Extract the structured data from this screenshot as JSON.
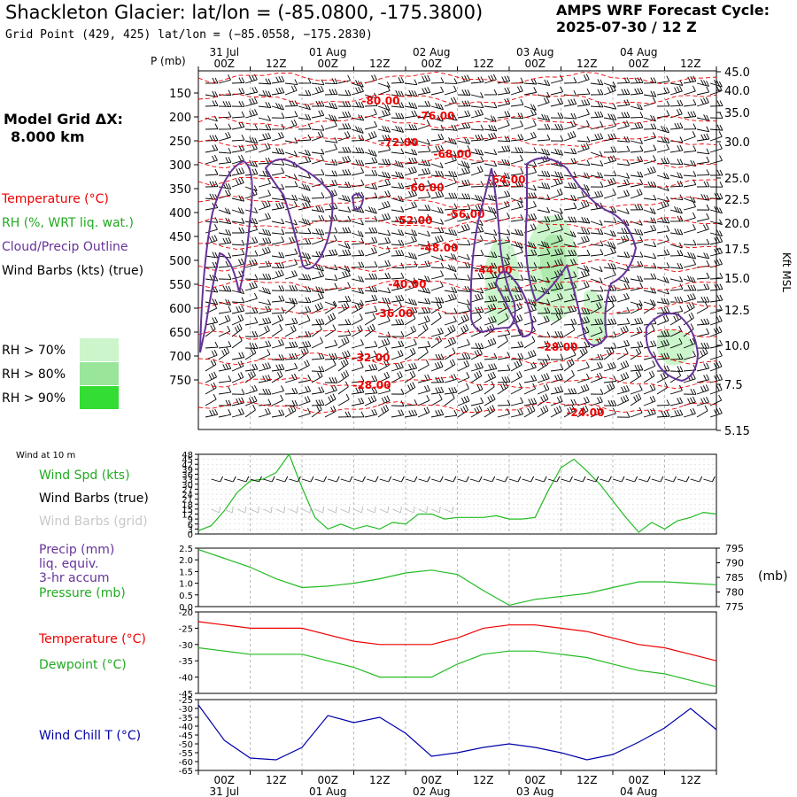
{
  "header": {
    "title": "Shackleton Glacier:  lat/lon = (-85.0800, -175.3800)",
    "subtitle": "Grid Point (429, 425) lat/lon = (−85.0558, −175.2830)",
    "cycle_line1": "AMPS WRF Forecast Cycle:",
    "cycle_line2": "2025-07-30 / 12  Z"
  },
  "left_panel": {
    "model_grid_line1": "Model Grid ΔX:",
    "model_grid_line2": "8.000 km",
    "legend": {
      "temperature": "Temperature (°C)",
      "rh": "RH (%, WRT liq. wat.)",
      "cloud": "Cloud/Precip Outline",
      "wind": "Wind Barbs (kts) (true)"
    },
    "rh_levels": [
      {
        "label": "RH > 70%",
        "color": "#ccf5cc"
      },
      {
        "label": "RH > 80%",
        "color": "#99e599"
      },
      {
        "label": "RH > 90%",
        "color": "#33dd33"
      }
    ]
  },
  "time_axis": {
    "ticks": [
      "00Z",
      "12Z",
      "00Z",
      "12Z",
      "00Z",
      "12Z",
      "00Z",
      "12Z",
      "00Z",
      "12Z"
    ],
    "dates": [
      "31 Jul",
      "01 Aug",
      "02 Aug",
      "03 Aug",
      "04 Aug"
    ]
  },
  "colors": {
    "temperature": "#ee0000",
    "rh_text": "#22aa22",
    "cloud": "#663399",
    "pressure_line": "#22bb22",
    "wind_chill": "#0000aa",
    "dewpoint": "#22bb22",
    "grid": "#aaaaaa"
  },
  "chart_data": [
    {
      "type": "cross-section",
      "title": "",
      "ylabel_left": "P (mb)",
      "ylabel_right": "Kft MSL",
      "pressure_ticks": [
        "150",
        "200",
        "250",
        "300",
        "350",
        "400",
        "450",
        "500",
        "550",
        "600",
        "650",
        "700",
        "750"
      ],
      "height_ticks": [
        "45.0",
        "40.0",
        "35.0",
        "30.0",
        "25.0",
        "22.5",
        "20.0",
        "17.5",
        "15.0",
        "12.5",
        "10.0",
        "7.5",
        "5.15"
      ],
      "temperature_contours": [
        {
          "label": "-80.00",
          "value": -80
        },
        {
          "label": "-76.00",
          "value": -76
        },
        {
          "label": "-72.00",
          "value": -72
        },
        {
          "label": "-68.00",
          "value": -68
        },
        {
          "label": "-64.00",
          "value": -64
        },
        {
          "label": "-60.00",
          "value": -60
        },
        {
          "label": "-56.00",
          "value": -56
        },
        {
          "label": "-52.00",
          "value": -52
        },
        {
          "label": "-48.00",
          "value": -48
        },
        {
          "label": "-44.00",
          "value": -44
        },
        {
          "label": "-40.00",
          "value": -40
        },
        {
          "label": "-36.00",
          "value": -36
        },
        {
          "label": "-32.00",
          "value": -32
        },
        {
          "label": "-28.00",
          "value": -28
        },
        {
          "label": "-28.00",
          "value": -28
        },
        {
          "label": "-24.00",
          "value": -24
        }
      ]
    },
    {
      "type": "line",
      "panel_label": "Wind at 10 m",
      "legend": [
        "Wind Spd (kts)",
        "Wind Barbs (true)",
        "Wind Barbs (grid)"
      ],
      "y_ticks": [
        "48",
        "45",
        "42",
        "39",
        "36",
        "33",
        "30",
        "27",
        "24",
        "21",
        "18",
        "15",
        "12",
        "9",
        "6",
        "3",
        "0"
      ],
      "ylim": [
        0,
        48
      ],
      "series": [
        {
          "name": "Wind Spd (kts)",
          "x_hours": [
            0,
            3,
            6,
            9,
            12,
            15,
            18,
            21,
            24,
            27,
            30,
            33,
            36,
            39,
            42,
            45,
            48,
            51,
            54,
            57,
            60,
            63,
            66,
            69,
            72,
            75,
            78,
            81,
            84,
            87,
            90,
            93,
            96,
            99,
            102,
            105,
            108,
            111,
            114,
            117,
            120
          ],
          "values": [
            2,
            5,
            14,
            25,
            32,
            33,
            37,
            48,
            28,
            10,
            3,
            6,
            3,
            5,
            3,
            7,
            6,
            12,
            12,
            9,
            10,
            10,
            10,
            11,
            9,
            9,
            10,
            26,
            40,
            45,
            38,
            30,
            20,
            10,
            1,
            7,
            3,
            8,
            10,
            13,
            12
          ]
        }
      ]
    },
    {
      "type": "line",
      "legend": [
        "Precip (mm)",
        "liq. equiv.",
        "3-hr accum",
        "Pressure (mb)"
      ],
      "y_ticks_left": [
        "2.5",
        "2.0",
        "1.5",
        "1.0",
        "0.5",
        "0.0"
      ],
      "y_ticks_right": [
        "795",
        "790",
        "785",
        "780",
        "775"
      ],
      "ylabel_right": "(mb)",
      "ylim_right": [
        775,
        795
      ],
      "series": [
        {
          "name": "Pressure (mb)",
          "x_hours": [
            0,
            6,
            12,
            18,
            24,
            30,
            36,
            42,
            48,
            54,
            60,
            66,
            72,
            78,
            84,
            90,
            96,
            102,
            108,
            114,
            120
          ],
          "values": [
            794.5,
            791.5,
            788.5,
            784.5,
            781.5,
            782,
            783,
            784.5,
            786.5,
            787.5,
            786,
            780.5,
            775.5,
            777.5,
            778.5,
            779.5,
            781.5,
            783.5,
            783.5,
            783,
            782.5
          ]
        }
      ]
    },
    {
      "type": "line",
      "legend": [
        "Temperature (°C)",
        "Dewpoint (°C)"
      ],
      "y_ticks": [
        "-20",
        "-25",
        "-30",
        "-35",
        "-40",
        "-45"
      ],
      "ylim": [
        -45,
        -20
      ],
      "series": [
        {
          "name": "Temperature (°C)",
          "x_hours": [
            0,
            6,
            12,
            18,
            24,
            30,
            36,
            42,
            48,
            54,
            60,
            66,
            72,
            78,
            84,
            90,
            96,
            102,
            108,
            114,
            120
          ],
          "values": [
            -23,
            -24,
            -25,
            -25,
            -25,
            -27,
            -29,
            -30,
            -30,
            -30,
            -28,
            -25,
            -24,
            -24,
            -25,
            -26,
            -28,
            -30,
            -31,
            -33,
            -35
          ]
        }
      ]
    },
    {
      "type": "line",
      "legend": [
        "Wind Chill T (°C)"
      ],
      "y_ticks": [
        "-25",
        "-30",
        "-35",
        "-40",
        "-45",
        "-50",
        "-55",
        "-60",
        "-65"
      ],
      "ylim": [
        -65,
        -25
      ],
      "series": [
        {
          "name": "Wind Chill T (°C)",
          "x_hours": [
            0,
            6,
            12,
            18,
            24,
            30,
            36,
            42,
            48,
            54,
            60,
            66,
            72,
            78,
            84,
            90,
            96,
            102,
            108,
            114,
            120
          ],
          "values": [
            -28,
            -48,
            -58,
            -59,
            -52,
            -34,
            -38,
            -35,
            -44,
            -57,
            -55,
            -52,
            -50,
            -52,
            -55,
            -59,
            -56,
            -49,
            -41,
            -30,
            -42
          ]
        }
      ]
    }
  ]
}
